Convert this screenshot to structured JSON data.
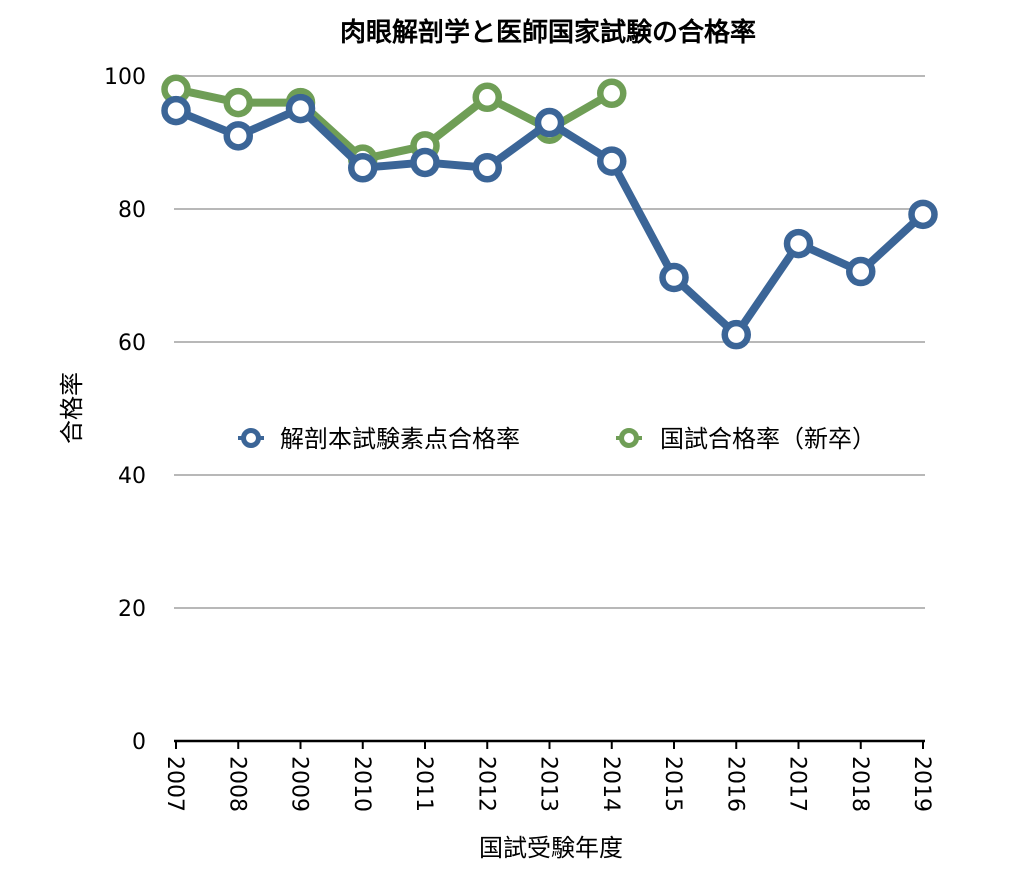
{
  "chart_data": {
    "type": "line",
    "title": "肉眼解剖学と医師国家試験の合格率",
    "xlabel": "国試受験年度",
    "ylabel": "合格率",
    "categories": [
      "2007",
      "2008",
      "2009",
      "2010",
      "2011",
      "2012",
      "2013",
      "2014",
      "2015",
      "2016",
      "2017",
      "2018",
      "2019"
    ],
    "ylim": [
      0,
      100
    ],
    "yticks": [
      "0",
      "20",
      "40",
      "60",
      "80",
      "100"
    ],
    "grid": true,
    "legend_position": "center",
    "series": [
      {
        "name": "国試合格率（新卒）",
        "color": "#6f9e56",
        "values": [
          98,
          96,
          96,
          87.5,
          89.5,
          96.8,
          92,
          97.4,
          null,
          null,
          null,
          null,
          null
        ]
      },
      {
        "name": "解剖本試験素点合格率",
        "color": "#3b6597",
        "values": [
          94.8,
          91,
          95.1,
          86.2,
          87,
          86.2,
          93,
          87.2,
          69.7,
          61.1,
          74.8,
          70.6,
          79.2
        ]
      }
    ]
  }
}
